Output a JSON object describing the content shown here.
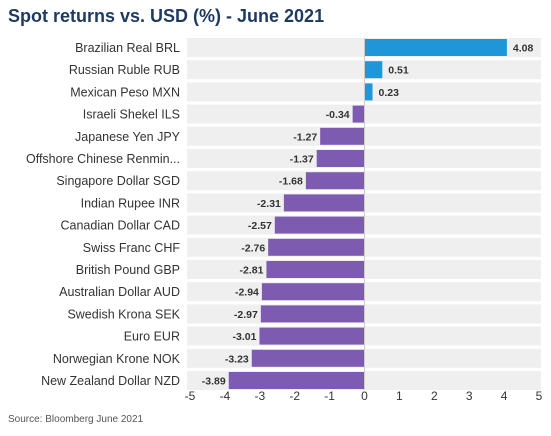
{
  "title": "Spot returns vs. USD (%) - June 2021",
  "source": "Source: Bloomberg June 2021",
  "colors": {
    "positive": "#1e96d8",
    "negative": "#7c5bb1",
    "band": "#efefef",
    "title": "#1f3a5f"
  },
  "chart_data": {
    "type": "bar",
    "orientation": "horizontal",
    "title": "Spot returns vs. USD (%) - June 2021",
    "categories": [
      "Brazilian Real BRL",
      "Russian Ruble RUB",
      "Mexican Peso MXN",
      "Israeli Shekel ILS",
      "Japanese Yen JPY",
      "Offshore Chinese Renmin...",
      "Singapore Dollar SGD",
      "Indian Rupee INR",
      "Canadian Dollar CAD",
      "Swiss Franc CHF",
      "British Pound GBP",
      "Australian Dollar AUD",
      "Swedish Krona SEK",
      "Euro EUR",
      "Norwegian Krone NOK",
      "New Zealand Dollar NZD"
    ],
    "values": [
      4.08,
      0.51,
      0.23,
      -0.34,
      -1.27,
      -1.37,
      -1.68,
      -2.31,
      -2.57,
      -2.76,
      -2.81,
      -2.94,
      -2.97,
      -3.01,
      -3.23,
      -3.89
    ],
    "value_labels": [
      "4.08",
      "0.51",
      "0.23",
      "-0.34",
      "-1.27",
      "-1.37",
      "-1.68",
      "-2.31",
      "-2.57",
      "-2.76",
      "-2.81",
      "-2.94",
      "-2.97",
      "-3.01",
      "-3.23",
      "-3.89"
    ],
    "xlim": [
      -5,
      5
    ],
    "xticks": [
      -5,
      -4,
      -3,
      -2,
      -1,
      0,
      1,
      2,
      3,
      4,
      5
    ],
    "xlabel": "",
    "ylabel": "",
    "grid": false,
    "legend": "none"
  }
}
